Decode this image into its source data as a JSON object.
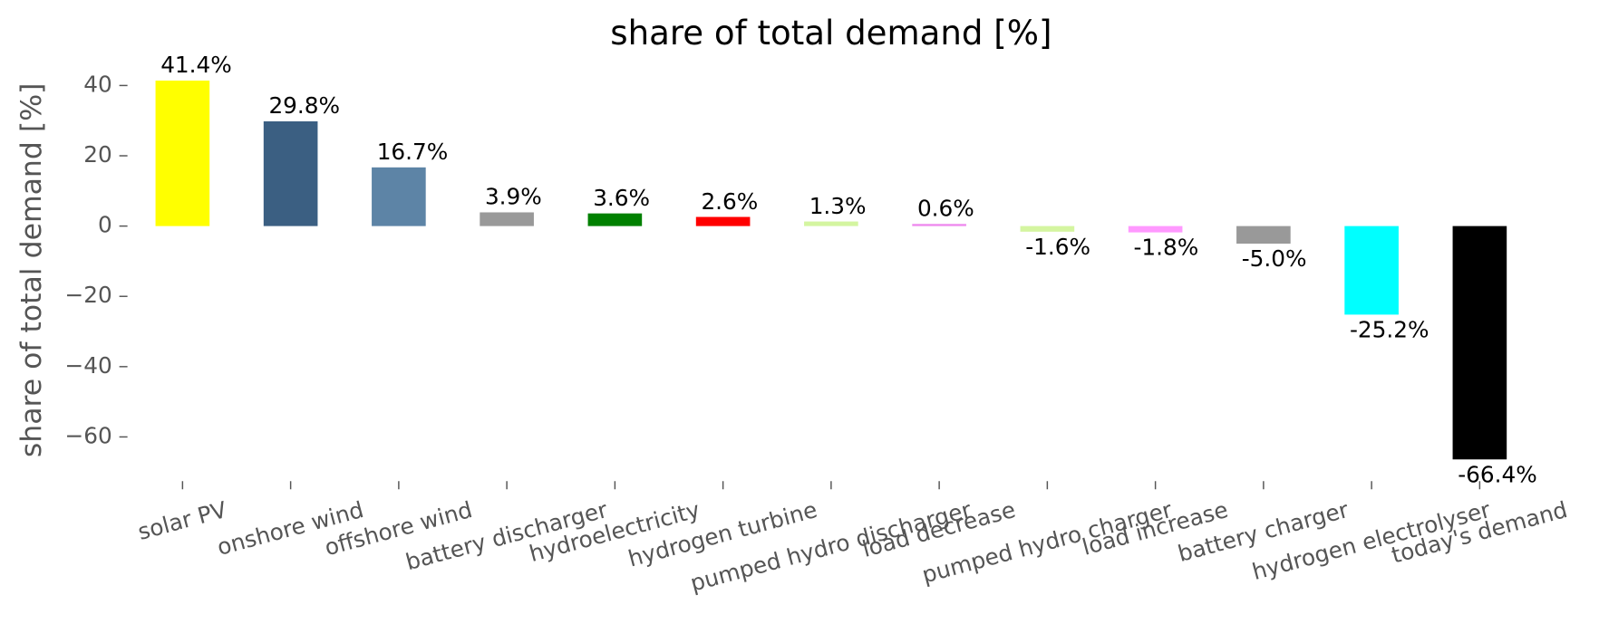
{
  "chart_data": {
    "type": "bar",
    "title": "share of total demand [%]",
    "ylabel": "share of total demand [%]",
    "categories": [
      "solar PV",
      "onshore wind",
      "offshore wind",
      "battery discharger",
      "hydroelectricity",
      "hydrogen turbine",
      "pumped hydro discharger",
      "load decrease",
      "pumped hydro charger",
      "load increase",
      "battery charger",
      "hydrogen electrolyser",
      "today's demand"
    ],
    "values": [
      41.4,
      29.8,
      16.7,
      3.9,
      3.6,
      2.6,
      1.3,
      0.6,
      -1.6,
      -1.8,
      -5.0,
      -25.2,
      -66.4
    ],
    "value_labels": [
      "41.4%",
      "29.8%",
      "16.7%",
      "3.9%",
      "3.6%",
      "2.6%",
      "1.3%",
      "0.6%",
      "-1.6%",
      "-1.8%",
      "-5.0%",
      "-25.2%",
      "-66.4%"
    ],
    "colors": [
      "#ffff00",
      "#3b5f82",
      "#5d84a6",
      "#999999",
      "#008000",
      "#ff0000",
      "#d4f5a0",
      "#ee88ee",
      "#d4f5a0",
      "#ff99ff",
      "#999999",
      "#00ffff",
      "#000000"
    ],
    "ylim": [
      -72,
      46
    ],
    "yticks": [
      {
        "value": -60,
        "label": "−60"
      },
      {
        "value": -40,
        "label": "−40"
      },
      {
        "value": -20,
        "label": "−20"
      },
      0,
      20,
      40
    ],
    "grid": false
  }
}
